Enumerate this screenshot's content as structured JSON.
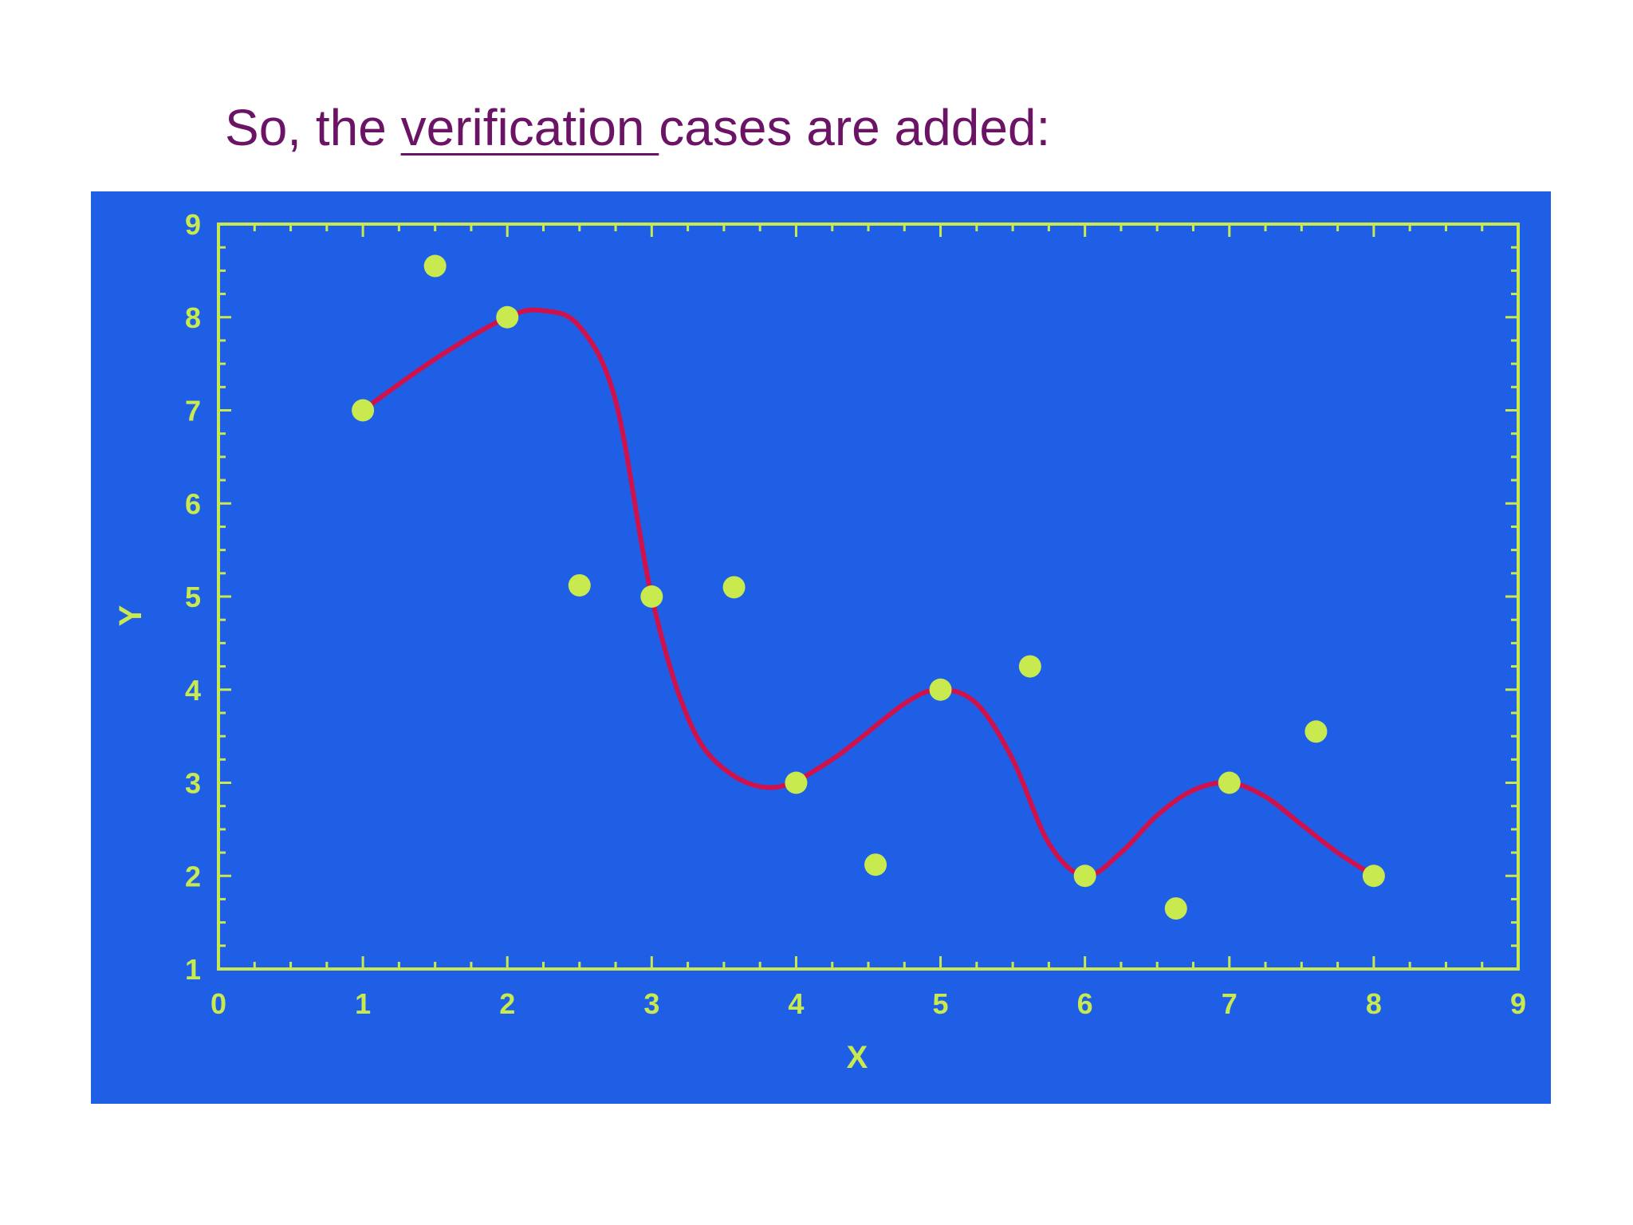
{
  "slide": {
    "title_prefix": "So, the ",
    "title_underlined": "verification ",
    "title_suffix": "cases are added:"
  },
  "colors": {
    "title": "#6b1466",
    "panel_background": "#1f5fe6",
    "axes_and_points": "#c9ea4e",
    "fit_curve": "#d0124c"
  },
  "chart_data": {
    "type": "scatter",
    "title": "",
    "xlabel": "X",
    "ylabel": "Y",
    "xlim": [
      0,
      9
    ],
    "ylim": [
      1,
      9
    ],
    "xticks": [
      0,
      1,
      2,
      3,
      4,
      5,
      6,
      7,
      8,
      9
    ],
    "yticks": [
      1,
      2,
      3,
      4,
      5,
      6,
      7,
      8,
      9
    ],
    "grid": false,
    "legend": "none",
    "series": [
      {
        "role": "training points",
        "marker": "circle",
        "x": [
          1,
          2,
          3,
          4,
          5,
          6,
          7,
          8
        ],
        "y": [
          7,
          8,
          5,
          3,
          4,
          2,
          3,
          2
        ]
      },
      {
        "role": "verification points",
        "marker": "circle",
        "x": [
          1.5,
          2.5,
          3.57,
          4.55,
          5.62,
          6.63,
          7.6
        ],
        "y": [
          8.55,
          5.12,
          5.1,
          2.12,
          4.25,
          1.65,
          3.55
        ]
      },
      {
        "role": "fitted curve",
        "marker": "line",
        "x": [
          1,
          1.5,
          2,
          2.25,
          2.5,
          2.75,
          3,
          3.25,
          3.5,
          3.85,
          4.25,
          4.75,
          5,
          5.25,
          5.5,
          5.75,
          6,
          6.25,
          6.5,
          6.75,
          7,
          7.25,
          7.5,
          7.75,
          8
        ],
        "y": [
          7,
          7.55,
          8,
          8.07,
          7.9,
          7.1,
          5,
          3.7,
          3.15,
          2.95,
          3.25,
          3.85,
          4,
          3.85,
          3.25,
          2.35,
          2,
          2.25,
          2.65,
          2.92,
          3,
          2.85,
          2.55,
          2.25,
          2
        ]
      }
    ]
  }
}
